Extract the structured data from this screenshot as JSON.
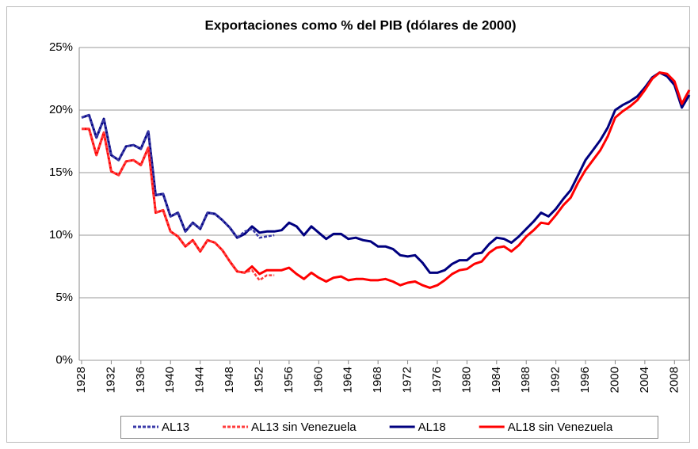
{
  "chart_data": {
    "type": "line",
    "title": "Exportaciones como % del PIB (dólares de 2000)",
    "x": [
      1928,
      1929,
      1930,
      1931,
      1932,
      1933,
      1934,
      1935,
      1936,
      1937,
      1938,
      1939,
      1940,
      1941,
      1942,
      1943,
      1944,
      1945,
      1946,
      1947,
      1948,
      1949,
      1950,
      1951,
      1952,
      1953,
      1954,
      1955,
      1956,
      1957,
      1958,
      1959,
      1960,
      1961,
      1962,
      1963,
      1964,
      1965,
      1966,
      1967,
      1968,
      1969,
      1970,
      1971,
      1972,
      1973,
      1974,
      1975,
      1976,
      1977,
      1978,
      1979,
      1980,
      1981,
      1982,
      1983,
      1984,
      1985,
      1986,
      1987,
      1988,
      1989,
      1990,
      1991,
      1992,
      1993,
      1994,
      1995,
      1996,
      1997,
      1998,
      1999,
      2000,
      2001,
      2002,
      2003,
      2004,
      2005,
      2006,
      2007,
      2008,
      2009,
      2010
    ],
    "xlim": [
      1928,
      2010
    ],
    "xticks": [
      1928,
      1932,
      1936,
      1940,
      1944,
      1948,
      1952,
      1956,
      1960,
      1964,
      1968,
      1972,
      1976,
      1980,
      1984,
      1988,
      1992,
      1996,
      2000,
      2004,
      2008
    ],
    "ylim": [
      0,
      25
    ],
    "yticks": [
      {
        "value": 0,
        "label": "0%"
      },
      {
        "value": 5,
        "label": "5%"
      },
      {
        "value": 10,
        "label": "10%"
      },
      {
        "value": 15,
        "label": "15%"
      },
      {
        "value": 20,
        "label": "20%"
      },
      {
        "value": 25,
        "label": "25%"
      }
    ],
    "grid": true,
    "legend": "bottom",
    "series": [
      {
        "name": "AL13",
        "color": "#3a3aa8",
        "dashed": true,
        "values": [
          19.4,
          19.6,
          17.8,
          19.3,
          16.4,
          16.0,
          17.1,
          17.2,
          16.9,
          18.3,
          13.2,
          13.3,
          11.5,
          11.8,
          10.3,
          11.0,
          10.5,
          11.8,
          11.7,
          11.2,
          10.6,
          9.8,
          10.3,
          10.5,
          9.8,
          9.9,
          10.0,
          null,
          null,
          null,
          null,
          null,
          null,
          null,
          null,
          null,
          null,
          null,
          null,
          null,
          null,
          null,
          null,
          null,
          null,
          null,
          null,
          null,
          null,
          null,
          null,
          null,
          null,
          null,
          null,
          null,
          null,
          null,
          null,
          null,
          null,
          null,
          null,
          null,
          null,
          null,
          null,
          null,
          null,
          null,
          null,
          null,
          null,
          null,
          null,
          null,
          null,
          null,
          null,
          null,
          null,
          null,
          null
        ]
      },
      {
        "name": "AL13 sin Venezuela",
        "color": "#ff3b3b",
        "dashed": true,
        "values": [
          18.5,
          18.5,
          16.4,
          18.2,
          15.1,
          14.8,
          15.9,
          16.0,
          15.6,
          17.0,
          11.8,
          12.0,
          10.3,
          9.9,
          9.1,
          9.6,
          8.7,
          9.6,
          9.4,
          8.8,
          7.9,
          7.1,
          7.0,
          7.2,
          6.4,
          6.8,
          6.8,
          null,
          null,
          null,
          null,
          null,
          null,
          null,
          null,
          null,
          null,
          null,
          null,
          null,
          null,
          null,
          null,
          null,
          null,
          null,
          null,
          null,
          null,
          null,
          null,
          null,
          null,
          null,
          null,
          null,
          null,
          null,
          null,
          null,
          null,
          null,
          null,
          null,
          null,
          null,
          null,
          null,
          null,
          null,
          null,
          null,
          null,
          null,
          null,
          null,
          null,
          null,
          null,
          null,
          null,
          null,
          null
        ]
      },
      {
        "name": "AL18",
        "color": "#00007f",
        "dashed": false,
        "values": [
          19.4,
          19.6,
          17.8,
          19.3,
          16.4,
          16.0,
          17.1,
          17.2,
          16.9,
          18.3,
          13.2,
          13.3,
          11.5,
          11.8,
          10.3,
          11.0,
          10.5,
          11.8,
          11.7,
          11.2,
          10.6,
          9.8,
          10.1,
          10.7,
          10.2,
          10.3,
          10.3,
          10.4,
          11.0,
          10.7,
          10.0,
          10.7,
          10.2,
          9.7,
          10.1,
          10.1,
          9.7,
          9.8,
          9.6,
          9.5,
          9.1,
          9.1,
          8.9,
          8.4,
          8.3,
          8.4,
          7.8,
          7.0,
          7.0,
          7.2,
          7.7,
          8.0,
          8.0,
          8.5,
          8.6,
          9.3,
          9.8,
          9.7,
          9.4,
          9.9,
          10.5,
          11.1,
          11.8,
          11.5,
          12.1,
          12.9,
          13.6,
          14.8,
          16.0,
          16.8,
          17.6,
          18.6,
          20.0,
          20.4,
          20.7,
          21.1,
          21.8,
          22.6,
          23.0,
          22.7,
          22.0,
          20.2,
          21.2
        ]
      },
      {
        "name": "AL18 sin Venezuela",
        "color": "#ff0000",
        "dashed": false,
        "values": [
          18.5,
          18.5,
          16.4,
          18.2,
          15.1,
          14.8,
          15.9,
          16.0,
          15.6,
          17.0,
          11.8,
          12.0,
          10.3,
          9.9,
          9.1,
          9.6,
          8.7,
          9.6,
          9.4,
          8.8,
          7.9,
          7.1,
          7.0,
          7.5,
          6.9,
          7.2,
          7.2,
          7.2,
          7.4,
          6.9,
          6.5,
          7.0,
          6.6,
          6.3,
          6.6,
          6.7,
          6.4,
          6.5,
          6.5,
          6.4,
          6.4,
          6.5,
          6.3,
          6.0,
          6.2,
          6.3,
          6.0,
          5.8,
          6.0,
          6.4,
          6.9,
          7.2,
          7.3,
          7.7,
          7.9,
          8.6,
          9.0,
          9.1,
          8.7,
          9.2,
          9.9,
          10.4,
          11.0,
          10.9,
          11.6,
          12.4,
          13.0,
          14.2,
          15.2,
          16.0,
          16.8,
          17.9,
          19.4,
          19.9,
          20.3,
          20.8,
          21.6,
          22.5,
          23.0,
          22.9,
          22.3,
          20.5,
          21.6
        ]
      }
    ]
  }
}
